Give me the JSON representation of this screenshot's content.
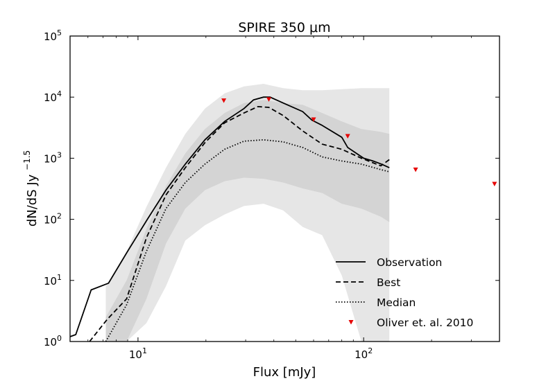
{
  "chart_data": {
    "type": "line",
    "title": "SPIRE 350 μm",
    "xlabel": "Flux [mJy]",
    "ylabel": "dN/dS Jy",
    "ylabel_exponent": "−1.5",
    "xscale": "log",
    "yscale": "log",
    "xlim": [
      5,
      400
    ],
    "ylim": [
      1,
      100000
    ],
    "grid": false,
    "legend_position": "lower-right",
    "x_ticks": [
      {
        "value": 10,
        "base": "10",
        "exp": "1"
      },
      {
        "value": 100,
        "base": "10",
        "exp": "2"
      }
    ],
    "y_ticks": [
      {
        "value": 1,
        "base": "10",
        "exp": "0"
      },
      {
        "value": 10,
        "base": "10",
        "exp": "1"
      },
      {
        "value": 100,
        "base": "10",
        "exp": "2"
      },
      {
        "value": 1000,
        "base": "10",
        "exp": "3"
      },
      {
        "value": 10000,
        "base": "10",
        "exp": "4"
      },
      {
        "value": 100000,
        "base": "10",
        "exp": "5"
      }
    ],
    "bands": [
      {
        "name": "outer range",
        "color": "#e6e6e6",
        "x": [
          7.2,
          8.9,
          10.9,
          13.3,
          16.2,
          19.8,
          24.2,
          29.5,
          36,
          44,
          53.7,
          65.5,
          80,
          97.7,
          119.2,
          130
        ],
        "lower": [
          0.55,
          0.55,
          2,
          8,
          45,
          80,
          120,
          165,
          180,
          140,
          75,
          55,
          12,
          1,
          1,
          1
        ],
        "upper": [
          8,
          30,
          160,
          700,
          2500,
          6500,
          11500,
          15000,
          16500,
          14000,
          13000,
          13000,
          13500,
          14000,
          14000,
          14000
        ]
      },
      {
        "name": "inner range",
        "color": "#d4d4d4",
        "x": [
          7.2,
          8.9,
          10.9,
          13.3,
          16.2,
          19.8,
          24.2,
          29.5,
          36,
          44,
          53.7,
          65.5,
          80,
          97.7,
          119.2,
          130
        ],
        "lower": [
          0.55,
          1,
          5,
          40,
          150,
          300,
          420,
          480,
          460,
          400,
          320,
          270,
          180,
          150,
          110,
          90
        ],
        "upper": [
          2.5,
          10,
          70,
          350,
          1200,
          3000,
          5500,
          8000,
          9000,
          8000,
          7500,
          5500,
          4000,
          3000,
          2700,
          2500
        ]
      }
    ],
    "series": [
      {
        "name": "Observation",
        "style": "solid",
        "x": [
          5,
          5.3,
          6.2,
          7.4,
          9,
          11,
          13.3,
          16.2,
          19.8,
          24.2,
          29.5,
          32.5,
          36,
          38.5,
          44,
          53.7,
          59,
          65,
          80,
          85,
          100,
          110,
          120,
          130
        ],
        "y": [
          1.2,
          1.3,
          7,
          9,
          30,
          100,
          300,
          800,
          2000,
          4000,
          6500,
          9000,
          10000,
          10000,
          8000,
          5800,
          4200,
          3500,
          2200,
          1500,
          1000,
          900,
          800,
          700
        ]
      },
      {
        "name": "Best",
        "style": "dashed",
        "x": [
          6.1,
          7.3,
          8.9,
          10.9,
          13.3,
          16.2,
          19.8,
          24.2,
          29.5,
          34,
          38,
          44,
          53.7,
          65.5,
          80,
          97.7,
          119.2,
          130
        ],
        "y": [
          1,
          2.3,
          5,
          50,
          250,
          700,
          1800,
          3800,
          5500,
          7000,
          6800,
          5000,
          2800,
          1700,
          1400,
          1000,
          750,
          950
        ]
      },
      {
        "name": "Median",
        "style": "dotted",
        "x": [
          7.2,
          8.9,
          10.9,
          13.3,
          16.2,
          19.8,
          24.2,
          29.5,
          36,
          44,
          53.7,
          65.5,
          80,
          97.7,
          119.2,
          130
        ],
        "y": [
          1,
          4,
          30,
          150,
          400,
          800,
          1400,
          1900,
          2000,
          1850,
          1500,
          1050,
          900,
          800,
          650,
          600
        ]
      },
      {
        "name": "Oliver et. al. 2010",
        "style": "markers",
        "color": "#e60000",
        "x": [
          24,
          38,
          60,
          85,
          170,
          380
        ],
        "y": [
          8800,
          9200,
          4300,
          2300,
          650,
          380
        ]
      }
    ]
  }
}
